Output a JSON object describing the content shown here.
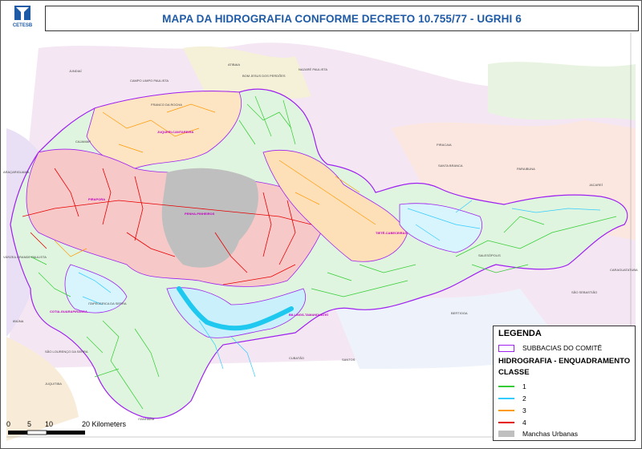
{
  "header": {
    "title": "MAPA DA HIDROGRAFIA CONFORME DECRETO 10.755/77 - UGRHI 6",
    "logo_text": "CETESB"
  },
  "legend": {
    "title": "LEGENDA",
    "subbasin_label": "SUBBACIAS DO COMITÊ",
    "hydro_heading": "HIDROGRAFIA - ENQUADRAMENTO",
    "class_heading": "CLASSE",
    "classes": [
      {
        "label": "1",
        "color": "#33cc33"
      },
      {
        "label": "2",
        "color": "#33ccff"
      },
      {
        "label": "3",
        "color": "#ff9900"
      },
      {
        "label": "4",
        "color": "#e60000"
      }
    ],
    "urban_label": "Manchas Urbanas",
    "urban_color": "#bfbfbf",
    "subbasin_color": "#a020f0"
  },
  "scale": {
    "ticks": [
      "0",
      "5",
      "10",
      "20 Kilometers"
    ]
  },
  "places": {
    "atibaia": "ATIBAIA",
    "jundiai": "JUNDIAÍ",
    "campo_limpo": "CAMPO LIMPO PAULISTA",
    "bom_jesus": "BOM JESUS DOS PERDÕES",
    "nazare": "NAZARÉ PAULISTA",
    "franco": "FRANCO DA ROCHA",
    "juqueri": "JUQUERI-CANTAREIRA",
    "cajamar": "CAJAMAR",
    "itapecerica": "ITAPECERICA DA SERRA",
    "santa_branca": "SANTA BRANCA",
    "paraibuna": "PARAIBUNA",
    "pinheiros": "PINHEIROS-PIRAPORA",
    "varzea": "VÁRZEA GRANDE PAULISTA",
    "cotia": "COTIA-GUARAPIRANGA",
    "billings": "BILLINGS-TAMANDUATEÍ",
    "ibiuna": "IBIÚNA",
    "sao_lourenco": "SÃO LOURENÇO DA SERRA",
    "juquitiba": "JUQUITIBA",
    "itanhaem": "ITANHAÉM",
    "cubatao": "CUBATÃO",
    "santos": "SANTOS",
    "bertioga": "BERTIOGA",
    "sao_sebastiao": "SÃO SEBASTIÃO",
    "caraguatatuba": "CARAGUATATUBA",
    "salesopolis": "SALESÓPOLIS",
    "jacarei": "JACAREÍ",
    "piracaia": "PIRACAIA",
    "aracariguama": "ARAÇARIGUAMA",
    "pirapora": "PIRAPORA",
    "tiete_cabeceiras": "TIETÊ-CABECEIRAS",
    "penha": "PENHA-PINHEIROS"
  }
}
